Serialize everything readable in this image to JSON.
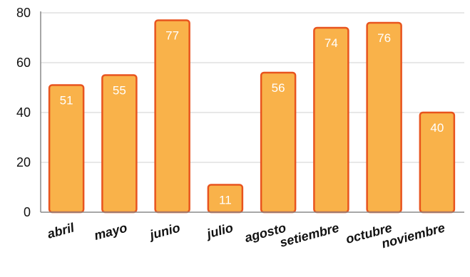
{
  "chart_data": {
    "type": "bar",
    "categories": [
      "abril",
      "mayo",
      "junio",
      "julio",
      "agosto",
      "setiembre",
      "octubre",
      "noviembre"
    ],
    "values": [
      51,
      55,
      77,
      11,
      56,
      74,
      76,
      40
    ],
    "data_labels": [
      "51",
      "55",
      "77",
      "11",
      "56",
      "74",
      "76",
      "40"
    ],
    "ylim": [
      0,
      80
    ],
    "y_ticks": [
      "0",
      "20",
      "40",
      "60",
      "80"
    ],
    "grid": true,
    "colors": {
      "bar_fill": "#f9b24a",
      "bar_stroke": "#e8541e",
      "grid": "#d9d9d9",
      "axis": "#8a8a8a"
    }
  }
}
